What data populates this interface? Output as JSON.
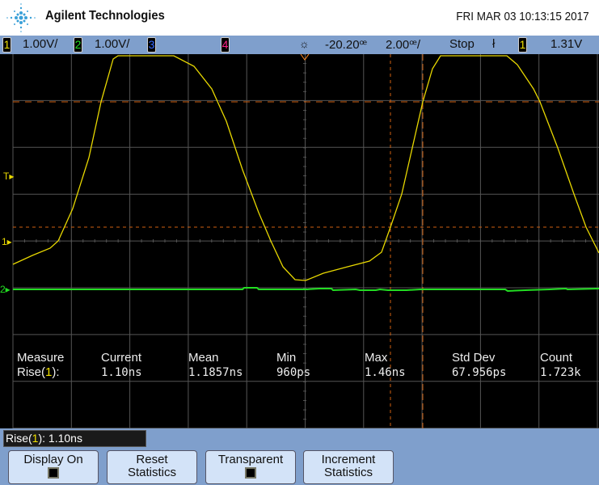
{
  "header": {
    "brand": "Agilent Technologies",
    "datetime": "FRI MAR 03 10:13:15 2017"
  },
  "status_bar": {
    "ch1": {
      "num": "1",
      "scale": "1.00V/",
      "color": "#f0e000"
    },
    "ch2": {
      "num": "2",
      "scale": "1.00V/",
      "color": "#22dd22"
    },
    "ch3": {
      "num": "3",
      "color": "#3366ff"
    },
    "ch4": {
      "num": "4",
      "color": "#ff2288"
    },
    "delay": "-20.20ꟹ",
    "timebase": "2.00ꟹ/",
    "run_state": "Stop",
    "trigger_source": "1",
    "trigger_level": "1.31V"
  },
  "markers": {
    "trigger": "T",
    "ch1": "1",
    "ch2": "2"
  },
  "measure": {
    "headers": [
      "Measure",
      "Current",
      "Mean",
      "Min",
      "Max",
      "Std Dev",
      "Count"
    ],
    "label_prefix": "Rise(",
    "label_ch": "1",
    "label_suffix": "):",
    "values": [
      "1.10ns",
      "1.1857ns",
      "960ps",
      "1.46ns",
      "67.956ps",
      "1.723k"
    ]
  },
  "readout": {
    "prefix": "Rise(",
    "ch": "1",
    "suffix": "): 1.10ns"
  },
  "softkeys": [
    {
      "line1": "Display On",
      "checkbox": true
    },
    {
      "line1": "Reset",
      "line2": "Statistics"
    },
    {
      "line1": "Transparent",
      "checkbox": true
    },
    {
      "line1": "Increment",
      "line2": "Statistics"
    }
  ],
  "colors": {
    "ch1": "#f0e000",
    "ch2": "#22dd22",
    "cursor": "#d06010",
    "grid": "#555555"
  }
}
